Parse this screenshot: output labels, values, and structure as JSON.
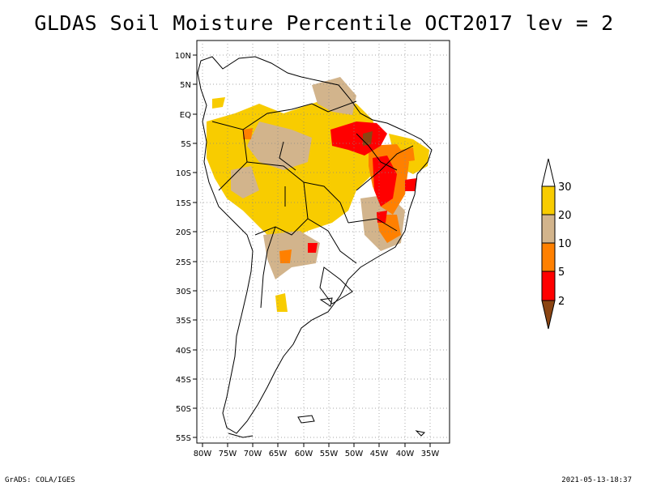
{
  "title": "GLDAS Soil Moisture Percentile OCT2017 lev = 2",
  "footer_left": "GrADS: COLA/IGES",
  "footer_right": "2021-05-13-18:37",
  "map": {
    "lon_range": [
      -80,
      -30
    ],
    "lat_range": [
      -56,
      12
    ],
    "lat_ticks": [
      "10N",
      "5N",
      "EQ",
      "5S",
      "10S",
      "15S",
      "20S",
      "25S",
      "30S",
      "35S",
      "40S",
      "45S",
      "50S",
      "55S"
    ],
    "lon_ticks": [
      "80W",
      "75W",
      "70W",
      "65W",
      "60W",
      "55W",
      "50W",
      "45W",
      "40W",
      "35W"
    ],
    "grid": "dotted"
  },
  "colorbar": {
    "labels": [
      "30",
      "20",
      "10",
      "5",
      "2"
    ],
    "colors": {
      "above_30": "#ffffff",
      "20_30": "#f8cc00",
      "10_20": "#d2b48c",
      "5_10": "#ff8000",
      "2_5": "#ff0000",
      "below_2": "#8b4513"
    }
  }
}
